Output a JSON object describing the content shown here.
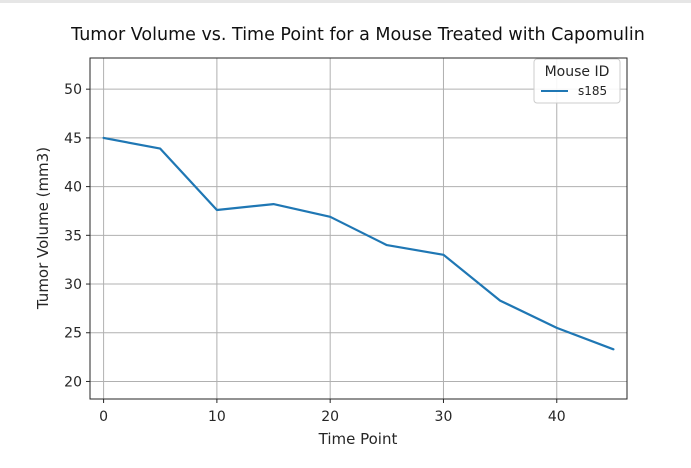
{
  "chart_data": {
    "type": "line",
    "title": "Tumor Volume vs. Time Point for a Mouse Treated with Capomulin",
    "xlabel": "Time Point",
    "ylabel": "Tumor Volume (mm3)",
    "xlim": [
      -1.2,
      46.2
    ],
    "ylim": [
      18.2,
      53.2
    ],
    "x_ticks": [
      0,
      10,
      20,
      30,
      40
    ],
    "y_ticks": [
      20,
      25,
      30,
      35,
      40,
      45,
      50
    ],
    "grid": true,
    "legend": {
      "title": "Mouse ID",
      "position": "top-right"
    },
    "series": [
      {
        "name": "s185",
        "color": "#1f77b4",
        "x": [
          0,
          5,
          10,
          15,
          20,
          25,
          30,
          35,
          40,
          45
        ],
        "y": [
          45.0,
          43.9,
          37.6,
          38.2,
          36.9,
          34.0,
          33.0,
          28.3,
          25.5,
          23.3
        ]
      }
    ]
  }
}
